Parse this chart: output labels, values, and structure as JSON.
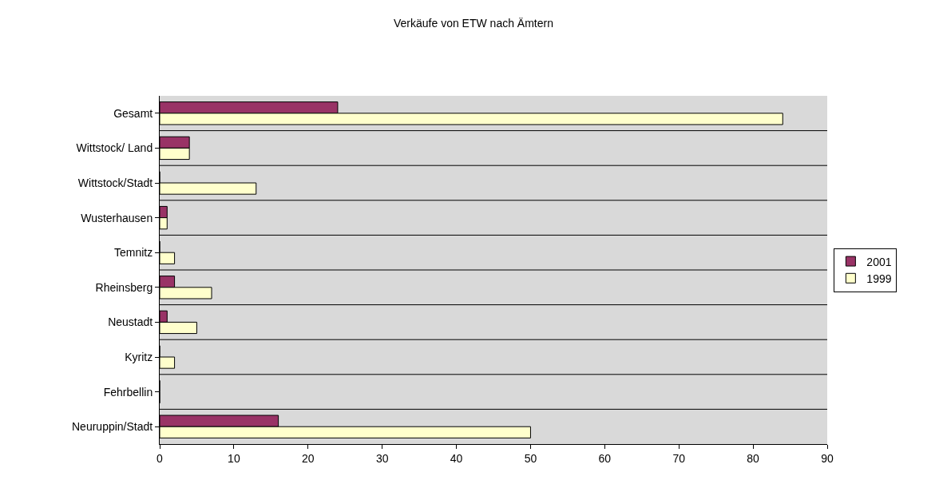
{
  "chart_data": {
    "type": "bar",
    "orientation": "horizontal",
    "title": "Verkäufe von ETW nach Ämtern",
    "categories": [
      "Gesamt",
      "Wittstock/ Land",
      "Wittstock/Stadt",
      "Wusterhausen",
      "Temnitz",
      "Rheinsberg",
      "Neustadt",
      "Kyritz",
      "Fehrbellin",
      "Neuruppin/Stadt"
    ],
    "series": [
      {
        "name": "2001",
        "color": "#993366",
        "values": [
          24,
          4,
          0,
          1,
          0,
          2,
          1,
          0,
          0,
          16
        ]
      },
      {
        "name": "1999",
        "color": "#ffffcc",
        "values": [
          84,
          4,
          13,
          1,
          2,
          7,
          5,
          2,
          0,
          50
        ]
      }
    ],
    "xlim": [
      0,
      90
    ],
    "xticks": [
      0,
      10,
      20,
      30,
      40,
      50,
      60,
      70,
      80,
      90
    ],
    "grid": "y",
    "legend": "right"
  }
}
